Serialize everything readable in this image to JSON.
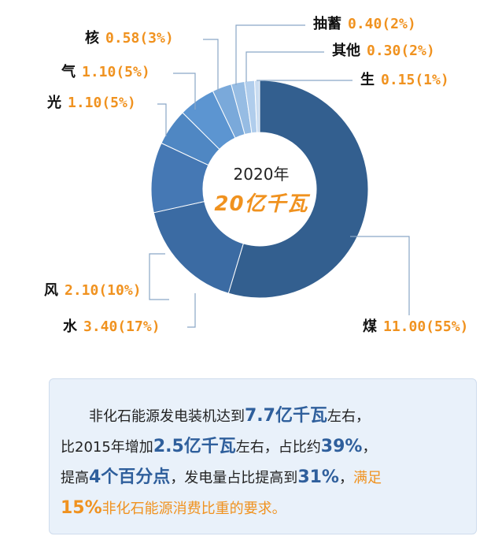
{
  "chart_data": {
    "type": "pie",
    "donut": true,
    "center": {
      "year": "2020年",
      "total": "20亿千瓦"
    },
    "slices": [
      {
        "name": "煤",
        "value": 11.0,
        "percent": 55,
        "display": "11.00(55%)",
        "color": "#335f8f"
      },
      {
        "name": "水",
        "value": 3.4,
        "percent": 17,
        "display": "3.40(17%)",
        "color": "#3b6ba3"
      },
      {
        "name": "风",
        "value": 2.1,
        "percent": 10,
        "display": "2.10(10%)",
        "color": "#4578b4"
      },
      {
        "name": "光",
        "value": 1.1,
        "percent": 5,
        "display": "1.10(5%)",
        "color": "#4f87c3"
      },
      {
        "name": "气",
        "value": 1.1,
        "percent": 5,
        "display": "1.10(5%)",
        "color": "#5c95d1"
      },
      {
        "name": "核",
        "value": 0.58,
        "percent": 3,
        "display": "0.58(3%)",
        "color": "#7aa9da"
      },
      {
        "name": "抽蓄",
        "value": 0.4,
        "percent": 2,
        "display": "0.40(2%)",
        "color": "#96bce3"
      },
      {
        "name": "其他",
        "value": 0.3,
        "percent": 2,
        "display": "0.30(2%)",
        "color": "#b0cdec"
      },
      {
        "name": "生",
        "value": 0.15,
        "percent": 1,
        "display": "0.15(1%)",
        "color": "#c9dcf1"
      }
    ]
  },
  "summary": {
    "line1_a": "非化石能源发电装机达到",
    "line1_b": "7.7亿千瓦",
    "line1_c": "左右，",
    "line2_a": "比2015年增加",
    "line2_b": "2.5亿千瓦",
    "line2_c": "左右，占比约",
    "line2_d": "39%",
    "line2_e": "，",
    "line3_a": "提高",
    "line3_b": "4个百分点",
    "line3_c": "，发电量占比提高到",
    "line3_d": "31%",
    "line3_e": "，",
    "line3_f": "满足",
    "line4_a": "15%",
    "line4_b": "非化石能源消费比重的要求。"
  }
}
